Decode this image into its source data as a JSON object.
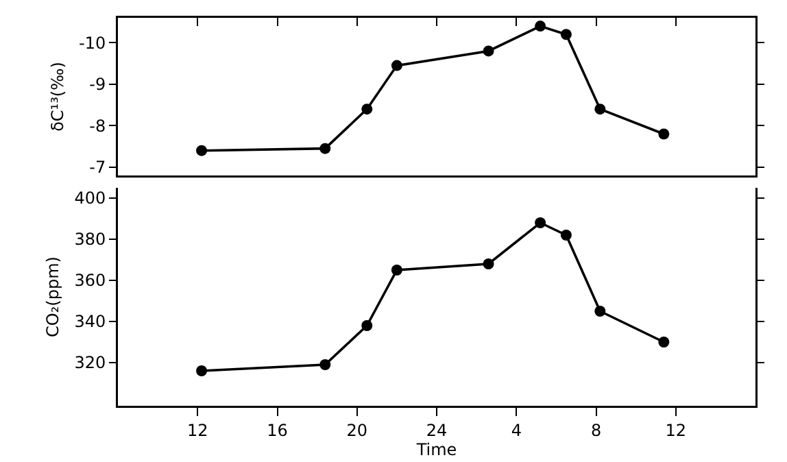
{
  "chart_data": [
    {
      "type": "line",
      "ylabel": "δC¹³(‰)",
      "x": [
        "--01-01T12:12",
        "--01-01T18:24",
        "--01-01T20:30",
        "--01-01T22:00",
        "--01-02T02:36",
        "--01-02T05:12",
        "--01-02T06:30",
        "--01-02T08:12",
        "--01-02T11:24"
      ],
      "series": [
        {
          "color": "#000000",
          "values": [
            -7.4,
            -7.45,
            -8.4,
            -9.45,
            -9.8,
            -10.4,
            -10.2,
            -8.4,
            -7.8
          ]
        }
      ],
      "xlim": [
        "--01-01T08:00",
        "--01-02T16:00"
      ],
      "xticks": [
        {
          "value": "--01-01T12:00",
          "label": null
        },
        {
          "value": "--01-01T16:00",
          "label": null
        },
        {
          "value": "--01-01T20:00",
          "label": null
        },
        {
          "value": "--01-02T00:00",
          "label": null
        },
        {
          "value": "--01-02T04:00",
          "label": null
        },
        {
          "value": "--01-02T08:00",
          "label": null
        },
        {
          "value": "--01-02T12:00",
          "label": null
        }
      ],
      "ylim": [
        -6.8,
        -10.6
      ],
      "yticks": [
        -10,
        -9,
        -8,
        -7
      ],
      "tick_labels": "y",
      "marker": "circle",
      "line_style": "solid"
    },
    {
      "type": "line",
      "xlabel": "Time",
      "ylabel": "CO₂(ppm)",
      "x": [
        "--01-01T12:12",
        "--01-01T18:24",
        "--01-01T20:30",
        "--01-01T22:00",
        "--01-02T02:36",
        "--01-02T05:12",
        "--01-02T06:30",
        "--01-02T08:12",
        "--01-02T11:24"
      ],
      "series": [
        {
          "color": "#000000",
          "values": [
            316,
            319,
            338,
            365,
            368,
            388,
            382,
            345,
            330
          ]
        }
      ],
      "xlim": [
        "--01-01T08:00",
        "--01-02T16:00"
      ],
      "xticks": [
        {
          "value": "--01-01T12:00",
          "label": "12"
        },
        {
          "value": "--01-01T16:00",
          "label": "16"
        },
        {
          "value": "--01-01T20:00",
          "label": "20"
        },
        {
          "value": "--01-02T00:00",
          "label": "24"
        },
        {
          "value": "--01-02T04:00",
          "label": "4"
        },
        {
          "value": "--01-02T08:00",
          "label": "8"
        },
        {
          "value": "--01-02T12:00",
          "label": "12"
        }
      ],
      "ylim": [
        299,
        405
      ],
      "yticks": [
        320,
        340,
        360,
        380,
        400
      ],
      "marker": "circle",
      "line_style": "solid"
    }
  ]
}
